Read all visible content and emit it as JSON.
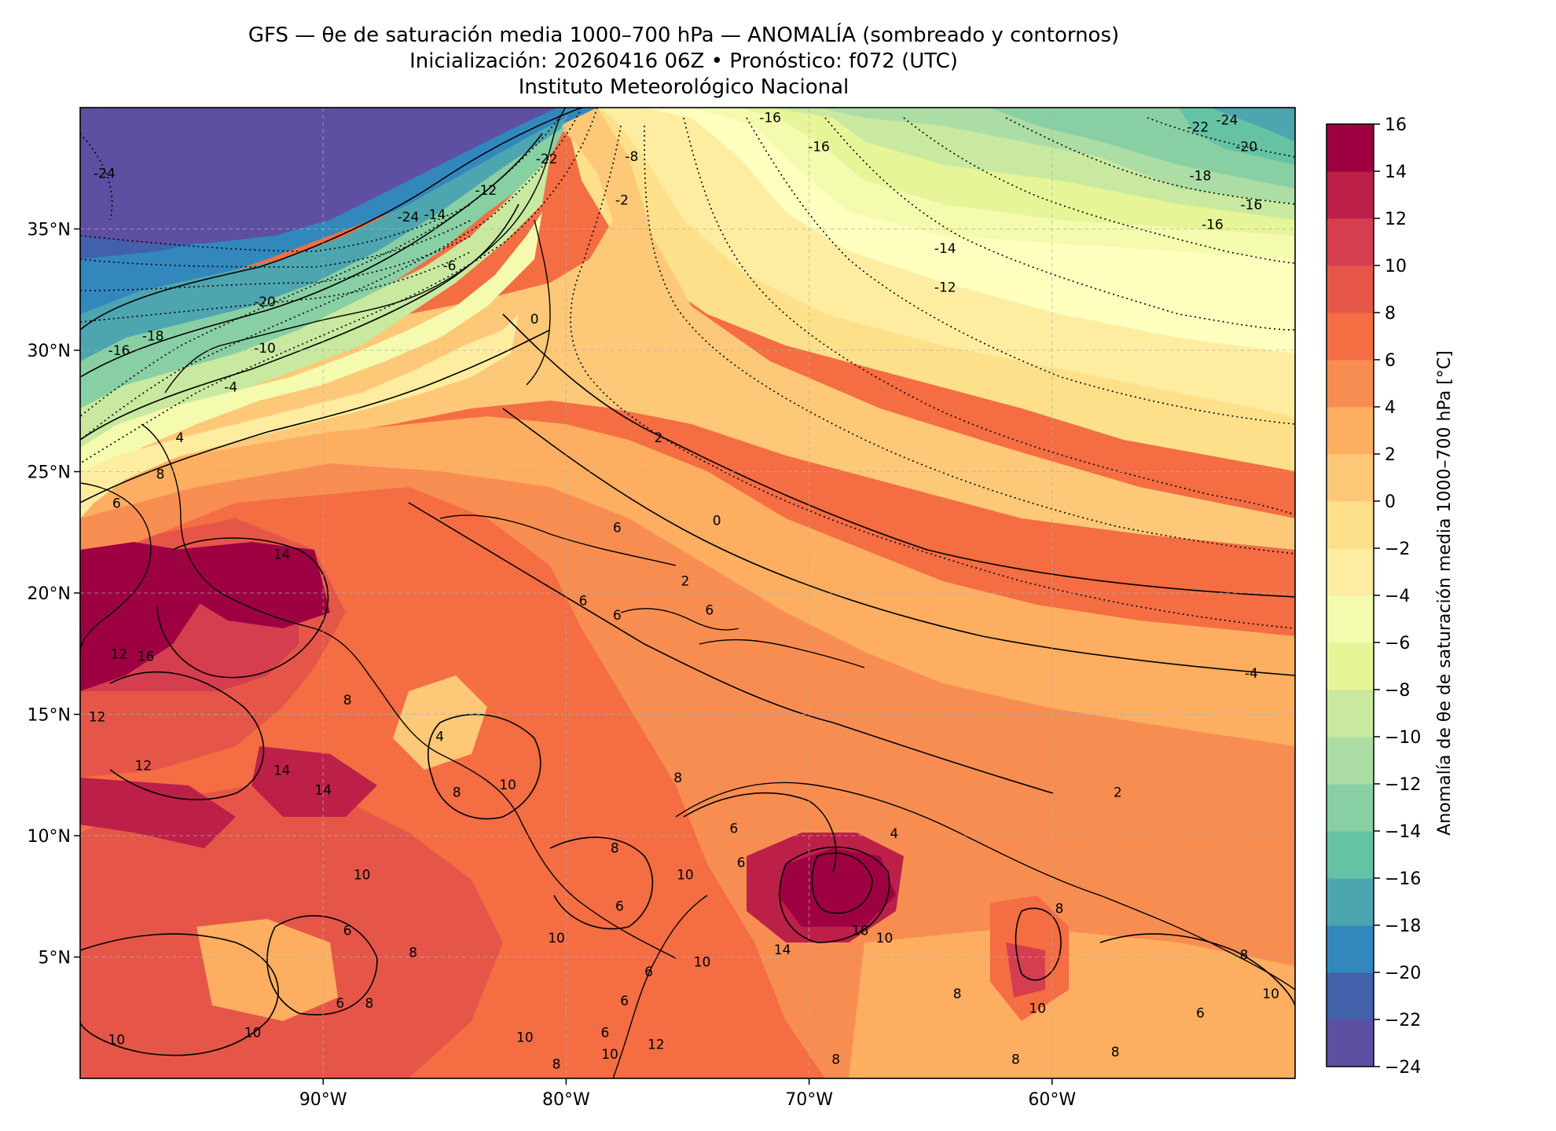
{
  "figure": {
    "title_line1": "GFS — θe de saturación media 1000–700 hPa — ANOMALÍA (sombreado y contornos)",
    "title_line2": "Inicialización: 20260416 06Z   •   Pronóstico: f072 (UTC)",
    "title_line3": "Instituto Meteorológico Nacional"
  },
  "map": {
    "lon_range": [
      -100,
      -50
    ],
    "lat_range": [
      0,
      40
    ],
    "lon_ticks": [
      {
        "value": -90,
        "label": "90°W"
      },
      {
        "value": -80,
        "label": "80°W"
      },
      {
        "value": -70,
        "label": "70°W"
      },
      {
        "value": -60,
        "label": "60°W"
      }
    ],
    "lat_ticks": [
      {
        "value": 35,
        "label": "35°N"
      },
      {
        "value": 30,
        "label": "30°N"
      },
      {
        "value": 25,
        "label": "25°N"
      },
      {
        "value": 20,
        "label": "20°N"
      },
      {
        "value": 15,
        "label": "15°N"
      },
      {
        "value": 10,
        "label": "10°N"
      },
      {
        "value": 5,
        "label": "5°N"
      }
    ],
    "contour_labels": [
      {
        "text": "-24",
        "lon": -99,
        "lat": 37.3
      },
      {
        "text": "-22",
        "lon": -80.8,
        "lat": 37.9
      },
      {
        "text": "-18",
        "lon": -97,
        "lat": 30.6
      },
      {
        "text": "-16",
        "lon": -98.4,
        "lat": 30.0
      },
      {
        "text": "-20",
        "lon": -92.4,
        "lat": 32.0
      },
      {
        "text": "-24",
        "lon": -86.5,
        "lat": 35.5
      },
      {
        "text": "-14",
        "lon": -85.4,
        "lat": 35.6
      },
      {
        "text": "-12",
        "lon": -83.3,
        "lat": 36.6
      },
      {
        "text": "-10",
        "lon": -92.4,
        "lat": 30.1
      },
      {
        "text": "-8",
        "lon": -77.3,
        "lat": 38.0
      },
      {
        "text": "-6",
        "lon": -84.8,
        "lat": 33.5
      },
      {
        "text": "-4",
        "lon": -93.8,
        "lat": 28.5
      },
      {
        "text": "-2",
        "lon": -77.7,
        "lat": 36.2
      },
      {
        "text": "0",
        "lon": -81.3,
        "lat": 31.3
      },
      {
        "text": "4",
        "lon": -95.9,
        "lat": 26.4
      },
      {
        "text": "8",
        "lon": -96.7,
        "lat": 24.9
      },
      {
        "text": "6",
        "lon": -98.5,
        "lat": 23.7
      },
      {
        "text": "14",
        "lon": -91.7,
        "lat": 21.6
      },
      {
        "text": "12",
        "lon": -98.4,
        "lat": 17.5
      },
      {
        "text": "16",
        "lon": -97.3,
        "lat": 17.4
      },
      {
        "text": "12",
        "lon": -99.3,
        "lat": 14.9
      },
      {
        "text": "12",
        "lon": -97.4,
        "lat": 12.9
      },
      {
        "text": "14",
        "lon": -91.7,
        "lat": 12.7
      },
      {
        "text": "14",
        "lon": -90.0,
        "lat": 11.9
      },
      {
        "text": "8",
        "lon": -89.0,
        "lat": 15.6
      },
      {
        "text": "4",
        "lon": -85.2,
        "lat": 14.1
      },
      {
        "text": "8",
        "lon": -84.5,
        "lat": 11.8
      },
      {
        "text": "10",
        "lon": -82.4,
        "lat": 12.1
      },
      {
        "text": "8",
        "lon": -78.0,
        "lat": 9.5
      },
      {
        "text": "6",
        "lon": -77.9,
        "lat": 22.7
      },
      {
        "text": "2",
        "lon": -76.2,
        "lat": 26.4
      },
      {
        "text": "0",
        "lon": -73.8,
        "lat": 23.0
      },
      {
        "text": "2",
        "lon": -75.1,
        "lat": 20.5
      },
      {
        "text": "6",
        "lon": -79.3,
        "lat": 19.7
      },
      {
        "text": "6",
        "lon": -77.9,
        "lat": 19.1
      },
      {
        "text": "6",
        "lon": -74.1,
        "lat": 19.3
      },
      {
        "text": "8",
        "lon": -75.4,
        "lat": 12.4
      },
      {
        "text": "6",
        "lon": -73.1,
        "lat": 10.3
      },
      {
        "text": "10",
        "lon": -75.1,
        "lat": 8.4
      },
      {
        "text": "6",
        "lon": -72.8,
        "lat": 8.9
      },
      {
        "text": "4",
        "lon": -66.5,
        "lat": 10.1
      },
      {
        "text": "2",
        "lon": -57.3,
        "lat": 11.8
      },
      {
        "text": "16",
        "lon": -67.9,
        "lat": 6.1
      },
      {
        "text": "14",
        "lon": -71.1,
        "lat": 5.3
      },
      {
        "text": "10",
        "lon": -66.9,
        "lat": 5.8
      },
      {
        "text": "10",
        "lon": -74.4,
        "lat": 4.8
      },
      {
        "text": "10",
        "lon": -80.4,
        "lat": 5.8
      },
      {
        "text": "10",
        "lon": -88.4,
        "lat": 8.4
      },
      {
        "text": "8",
        "lon": -86.3,
        "lat": 5.2
      },
      {
        "text": "8",
        "lon": -88.1,
        "lat": 3.1
      },
      {
        "text": "6",
        "lon": -89.0,
        "lat": 6.1
      },
      {
        "text": "6",
        "lon": -89.3,
        "lat": 3.1
      },
      {
        "text": "10",
        "lon": -92.9,
        "lat": 1.9
      },
      {
        "text": "10",
        "lon": -98.5,
        "lat": 1.6
      },
      {
        "text": "10",
        "lon": -81.7,
        "lat": 1.7
      },
      {
        "text": "6",
        "lon": -77.8,
        "lat": 7.1
      },
      {
        "text": "6",
        "lon": -76.6,
        "lat": 4.4
      },
      {
        "text": "6",
        "lon": -77.6,
        "lat": 3.2
      },
      {
        "text": "6",
        "lon": -78.4,
        "lat": 1.9
      },
      {
        "text": "12",
        "lon": -76.3,
        "lat": 1.4
      },
      {
        "text": "8",
        "lon": -80.4,
        "lat": 0.6
      },
      {
        "text": "10",
        "lon": -78.2,
        "lat": 1.0
      },
      {
        "text": "8",
        "lon": -63.9,
        "lat": 3.5
      },
      {
        "text": "8",
        "lon": -68.9,
        "lat": 0.8
      },
      {
        "text": "8",
        "lon": -61.5,
        "lat": 0.8
      },
      {
        "text": "8",
        "lon": -57.4,
        "lat": 1.1
      },
      {
        "text": "10",
        "lon": -60.6,
        "lat": 2.9
      },
      {
        "text": "6",
        "lon": -53.9,
        "lat": 2.7
      },
      {
        "text": "8",
        "lon": -59.7,
        "lat": 7.0
      },
      {
        "text": "8",
        "lon": -52.1,
        "lat": 5.1
      },
      {
        "text": "10",
        "lon": -51.0,
        "lat": 3.5
      },
      {
        "text": "-4",
        "lon": -51.8,
        "lat": 16.7
      },
      {
        "text": "-12",
        "lon": -64.4,
        "lat": 32.6
      },
      {
        "text": "-14",
        "lon": -64.4,
        "lat": 34.2
      },
      {
        "text": "-16",
        "lon": -71.6,
        "lat": 39.6
      },
      {
        "text": "-16",
        "lon": -69.6,
        "lat": 38.4
      },
      {
        "text": "-22",
        "lon": -54.0,
        "lat": 39.2
      },
      {
        "text": "-24",
        "lon": -52.8,
        "lat": 39.5
      },
      {
        "text": "-20",
        "lon": -52.0,
        "lat": 38.4
      },
      {
        "text": "-18",
        "lon": -53.9,
        "lat": 37.2
      },
      {
        "text": "-16",
        "lon": -51.8,
        "lat": 36.0
      },
      {
        "text": "-16",
        "lon": -53.4,
        "lat": 35.2
      }
    ]
  },
  "colorbar": {
    "label": "Anomalía de θe de saturación media 1000–700 hPa [°C]",
    "min": -24,
    "max": 16,
    "step": 2,
    "tick_labels": [
      "16",
      "14",
      "12",
      "10",
      "8",
      "6",
      "4",
      "2",
      "0",
      "−2",
      "−4",
      "−6",
      "−8",
      "−10",
      "−12",
      "−14",
      "−16",
      "−18",
      "−20",
      "−22",
      "−24"
    ],
    "colors": [
      "#5e4fa2",
      "#4261ab",
      "#3288bd",
      "#4da5b0",
      "#66c2a5",
      "#88cfa4",
      "#abdda4",
      "#c8e99f",
      "#e6f598",
      "#f4faae",
      "#ffffbf",
      "#feeda1",
      "#fee08b",
      "#fdc877",
      "#fdae61",
      "#f88d52",
      "#f46d43",
      "#e55649",
      "#d53e4f",
      "#bc2048",
      "#9e0142"
    ]
  }
}
